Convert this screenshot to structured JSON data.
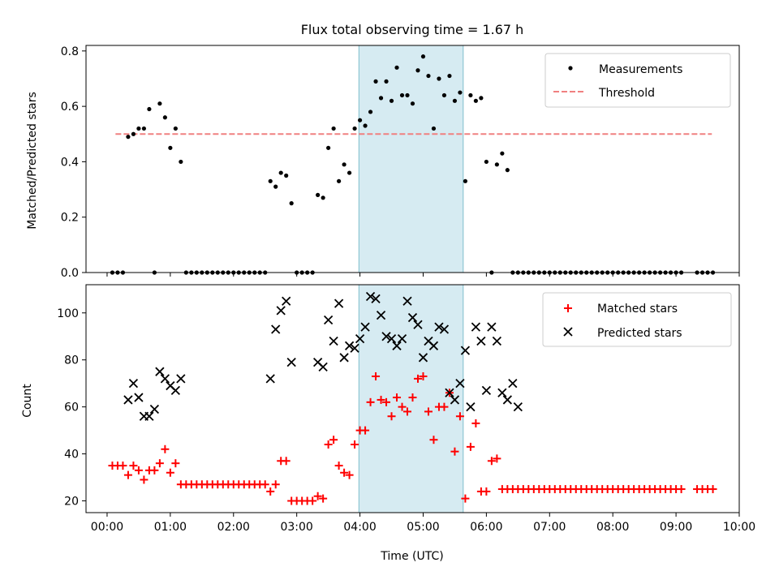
{
  "title": "Flux total observing time = 1.67 h",
  "colors": {
    "measurement": "#000000",
    "threshold": "#f08080",
    "matched": "#ff0000",
    "predicted": "#000000",
    "span": "#add8e6"
  },
  "chart_data": [
    {
      "type": "scatter",
      "title": "Flux total observing time = 1.67 h",
      "xlabel": "",
      "ylabel": "Matched/Predicted stars",
      "xlim": [
        "-00:20",
        "10:00"
      ],
      "ylim": [
        0,
        0.82
      ],
      "xticks": [
        "00:00",
        "01:00",
        "02:00",
        "03:00",
        "04:00",
        "05:00",
        "06:00",
        "07:00",
        "08:00",
        "09:00",
        "10:00"
      ],
      "yticks": [
        "0.0",
        "0.2",
        "0.4",
        "0.6",
        "0.8"
      ],
      "legend": {
        "position": "upper right",
        "entries": [
          "Measurements",
          "Threshold"
        ]
      },
      "shaded_span": [
        "03:59",
        "05:38"
      ],
      "threshold": {
        "y": 0.5,
        "x": [
          "00:08",
          "09:34"
        ],
        "style": "dashed"
      },
      "series": [
        {
          "name": "Measurements",
          "x": [
            "00:05",
            "00:10",
            "00:15",
            "00:20",
            "00:25",
            "00:30",
            "00:35",
            "00:40",
            "00:45",
            "00:50",
            "00:55",
            "01:00",
            "01:05",
            "01:10",
            "01:15",
            "01:20",
            "01:25",
            "01:30",
            "01:35",
            "01:40",
            "01:45",
            "01:50",
            "01:55",
            "02:00",
            "02:05",
            "02:10",
            "02:15",
            "02:20",
            "02:25",
            "02:30",
            "02:35",
            "02:40",
            "02:45",
            "02:50",
            "02:55",
            "03:00",
            "03:05",
            "03:10",
            "03:15",
            "03:20",
            "03:25",
            "03:30",
            "03:35",
            "03:40",
            "03:45",
            "03:50",
            "03:55",
            "04:00",
            "04:05",
            "04:10",
            "04:15",
            "04:20",
            "04:25",
            "04:30",
            "04:35",
            "04:40",
            "04:45",
            "04:50",
            "04:55",
            "05:00",
            "05:05",
            "05:10",
            "05:15",
            "05:20",
            "05:25",
            "05:30",
            "05:35",
            "05:40",
            "05:45",
            "05:50",
            "05:55",
            "06:00",
            "06:05",
            "06:10",
            "06:15",
            "06:20",
            "06:25",
            "06:30",
            "06:35",
            "06:40",
            "06:45",
            "06:50",
            "06:55",
            "07:00",
            "07:05",
            "07:10",
            "07:15",
            "07:20",
            "07:25",
            "07:30",
            "07:35",
            "07:40",
            "07:45",
            "07:50",
            "07:55",
            "08:00",
            "08:05",
            "08:10",
            "08:15",
            "08:20",
            "08:25",
            "08:30",
            "08:35",
            "08:40",
            "08:45",
            "08:50",
            "08:55",
            "09:00",
            "09:05",
            "09:20",
            "09:25",
            "09:30",
            "09:35"
          ],
          "y": [
            0.0,
            0.0,
            0.0,
            0.49,
            0.5,
            0.52,
            0.52,
            0.59,
            0.0,
            0.61,
            0.56,
            0.45,
            0.52,
            0.4,
            0.0,
            0.0,
            0.0,
            0.0,
            0.0,
            0.0,
            0.0,
            0.0,
            0.0,
            0.0,
            0.0,
            0.0,
            0.0,
            0.0,
            0.0,
            0.0,
            0.33,
            0.31,
            0.36,
            0.35,
            0.25,
            0.0,
            0.0,
            0.0,
            0.0,
            0.28,
            0.27,
            0.45,
            0.52,
            0.33,
            0.39,
            0.36,
            0.52,
            0.55,
            0.53,
            0.58,
            0.69,
            0.63,
            0.69,
            0.62,
            0.74,
            0.64,
            0.64,
            0.61,
            0.73,
            0.78,
            0.71,
            0.52,
            0.7,
            0.64,
            0.71,
            0.62,
            0.65,
            0.33,
            0.64,
            0.62,
            0.63,
            0.4,
            0.0,
            0.39,
            0.43,
            0.37,
            0.0,
            0.0,
            0.0,
            0.0,
            0.0,
            0.0,
            0.0,
            0.0,
            0.0,
            0.0,
            0.0,
            0.0,
            0.0,
            0.0,
            0.0,
            0.0,
            0.0,
            0.0,
            0.0,
            0.0,
            0.0,
            0.0,
            0.0,
            0.0,
            0.0,
            0.0,
            0.0,
            0.0,
            0.0,
            0.0,
            0.0,
            0.0,
            0.0,
            0.0,
            0.0,
            0.0,
            0.0
          ]
        }
      ]
    },
    {
      "type": "scatter",
      "title": "",
      "xlabel": "Time (UTC)",
      "ylabel": "Count",
      "xlim": [
        "-00:20",
        "10:00"
      ],
      "ylim": [
        15,
        112
      ],
      "xticks": [
        "00:00",
        "01:00",
        "02:00",
        "03:00",
        "04:00",
        "05:00",
        "06:00",
        "07:00",
        "08:00",
        "09:00",
        "10:00"
      ],
      "yticks": [
        "20",
        "40",
        "60",
        "80",
        "100"
      ],
      "legend": {
        "position": "upper right",
        "entries": [
          "Matched stars",
          "Predicted stars"
        ]
      },
      "shaded_span": [
        "03:59",
        "05:38"
      ],
      "series": [
        {
          "name": "Matched stars",
          "marker": "plus",
          "x": [
            "00:05",
            "00:10",
            "00:15",
            "00:20",
            "00:25",
            "00:30",
            "00:35",
            "00:40",
            "00:45",
            "00:50",
            "00:55",
            "01:00",
            "01:05",
            "01:10",
            "01:15",
            "01:20",
            "01:25",
            "01:30",
            "01:35",
            "01:40",
            "01:45",
            "01:50",
            "01:55",
            "02:00",
            "02:05",
            "02:10",
            "02:15",
            "02:20",
            "02:25",
            "02:30",
            "02:35",
            "02:40",
            "02:45",
            "02:50",
            "02:55",
            "03:00",
            "03:05",
            "03:10",
            "03:15",
            "03:20",
            "03:25",
            "03:30",
            "03:35",
            "03:40",
            "03:45",
            "03:50",
            "03:55",
            "04:00",
            "04:05",
            "04:10",
            "04:15",
            "04:20",
            "04:25",
            "04:30",
            "04:35",
            "04:40",
            "04:45",
            "04:50",
            "04:55",
            "05:00",
            "05:05",
            "05:10",
            "05:15",
            "05:20",
            "05:25",
            "05:30",
            "05:35",
            "05:40",
            "05:45",
            "05:50",
            "05:55",
            "06:00",
            "06:05",
            "06:10",
            "06:15",
            "06:20",
            "06:25",
            "06:30",
            "06:35",
            "06:40",
            "06:45",
            "06:50",
            "06:55",
            "07:00",
            "07:05",
            "07:10",
            "07:15",
            "07:20",
            "07:25",
            "07:30",
            "07:35",
            "07:40",
            "07:45",
            "07:50",
            "07:55",
            "08:00",
            "08:05",
            "08:10",
            "08:15",
            "08:20",
            "08:25",
            "08:30",
            "08:35",
            "08:40",
            "08:45",
            "08:50",
            "08:55",
            "09:00",
            "09:05",
            "09:20",
            "09:25",
            "09:30",
            "09:35"
          ],
          "y": [
            35,
            35,
            35,
            31,
            35,
            33,
            29,
            33,
            33,
            36,
            42,
            32,
            36,
            27,
            27,
            27,
            27,
            27,
            27,
            27,
            27,
            27,
            27,
            27,
            27,
            27,
            27,
            27,
            27,
            27,
            24,
            27,
            37,
            37,
            20,
            20,
            20,
            20,
            20,
            22,
            21,
            44,
            46,
            35,
            32,
            31,
            44,
            50,
            50,
            62,
            73,
            63,
            62,
            56,
            64,
            60,
            58,
            64,
            72,
            73,
            58,
            46,
            60,
            60,
            66,
            41,
            56,
            21,
            43,
            53,
            24,
            24,
            37,
            38,
            25,
            25,
            25,
            25,
            25,
            25,
            25,
            25,
            25,
            25,
            25,
            25,
            25,
            25,
            25,
            25,
            25,
            25,
            25,
            25,
            25,
            25,
            25,
            25,
            25,
            25,
            25,
            25,
            25,
            25,
            25,
            25,
            25,
            25,
            25,
            25,
            25,
            25,
            25
          ]
        },
        {
          "name": "Predicted stars",
          "marker": "x",
          "x": [
            "00:20",
            "00:25",
            "00:30",
            "00:35",
            "00:40",
            "00:45",
            "00:50",
            "00:55",
            "01:00",
            "01:05",
            "01:10",
            "02:35",
            "02:40",
            "02:45",
            "02:50",
            "02:55",
            "03:20",
            "03:25",
            "03:30",
            "03:35",
            "03:40",
            "03:45",
            "03:50",
            "03:55",
            "04:00",
            "04:05",
            "04:10",
            "04:15",
            "04:20",
            "04:25",
            "04:30",
            "04:35",
            "04:40",
            "04:45",
            "04:50",
            "04:55",
            "05:00",
            "05:05",
            "05:10",
            "05:15",
            "05:20",
            "05:25",
            "05:30",
            "05:35",
            "05:40",
            "05:45",
            "05:50",
            "05:55",
            "06:00",
            "06:05",
            "06:10",
            "06:15",
            "06:20",
            "06:25",
            "06:30"
          ],
          "y": [
            63,
            70,
            64,
            56,
            56,
            59,
            75,
            72,
            69,
            67,
            72,
            72,
            93,
            101,
            105,
            79,
            79,
            77,
            97,
            88,
            104,
            81,
            86,
            85,
            89,
            94,
            107,
            106,
            99,
            90,
            89,
            86,
            89,
            105,
            98,
            95,
            81,
            88,
            86,
            94,
            93,
            66,
            63,
            70,
            84,
            60,
            94,
            88,
            67,
            94,
            88,
            66,
            63,
            70,
            60
          ]
        }
      ]
    }
  ]
}
